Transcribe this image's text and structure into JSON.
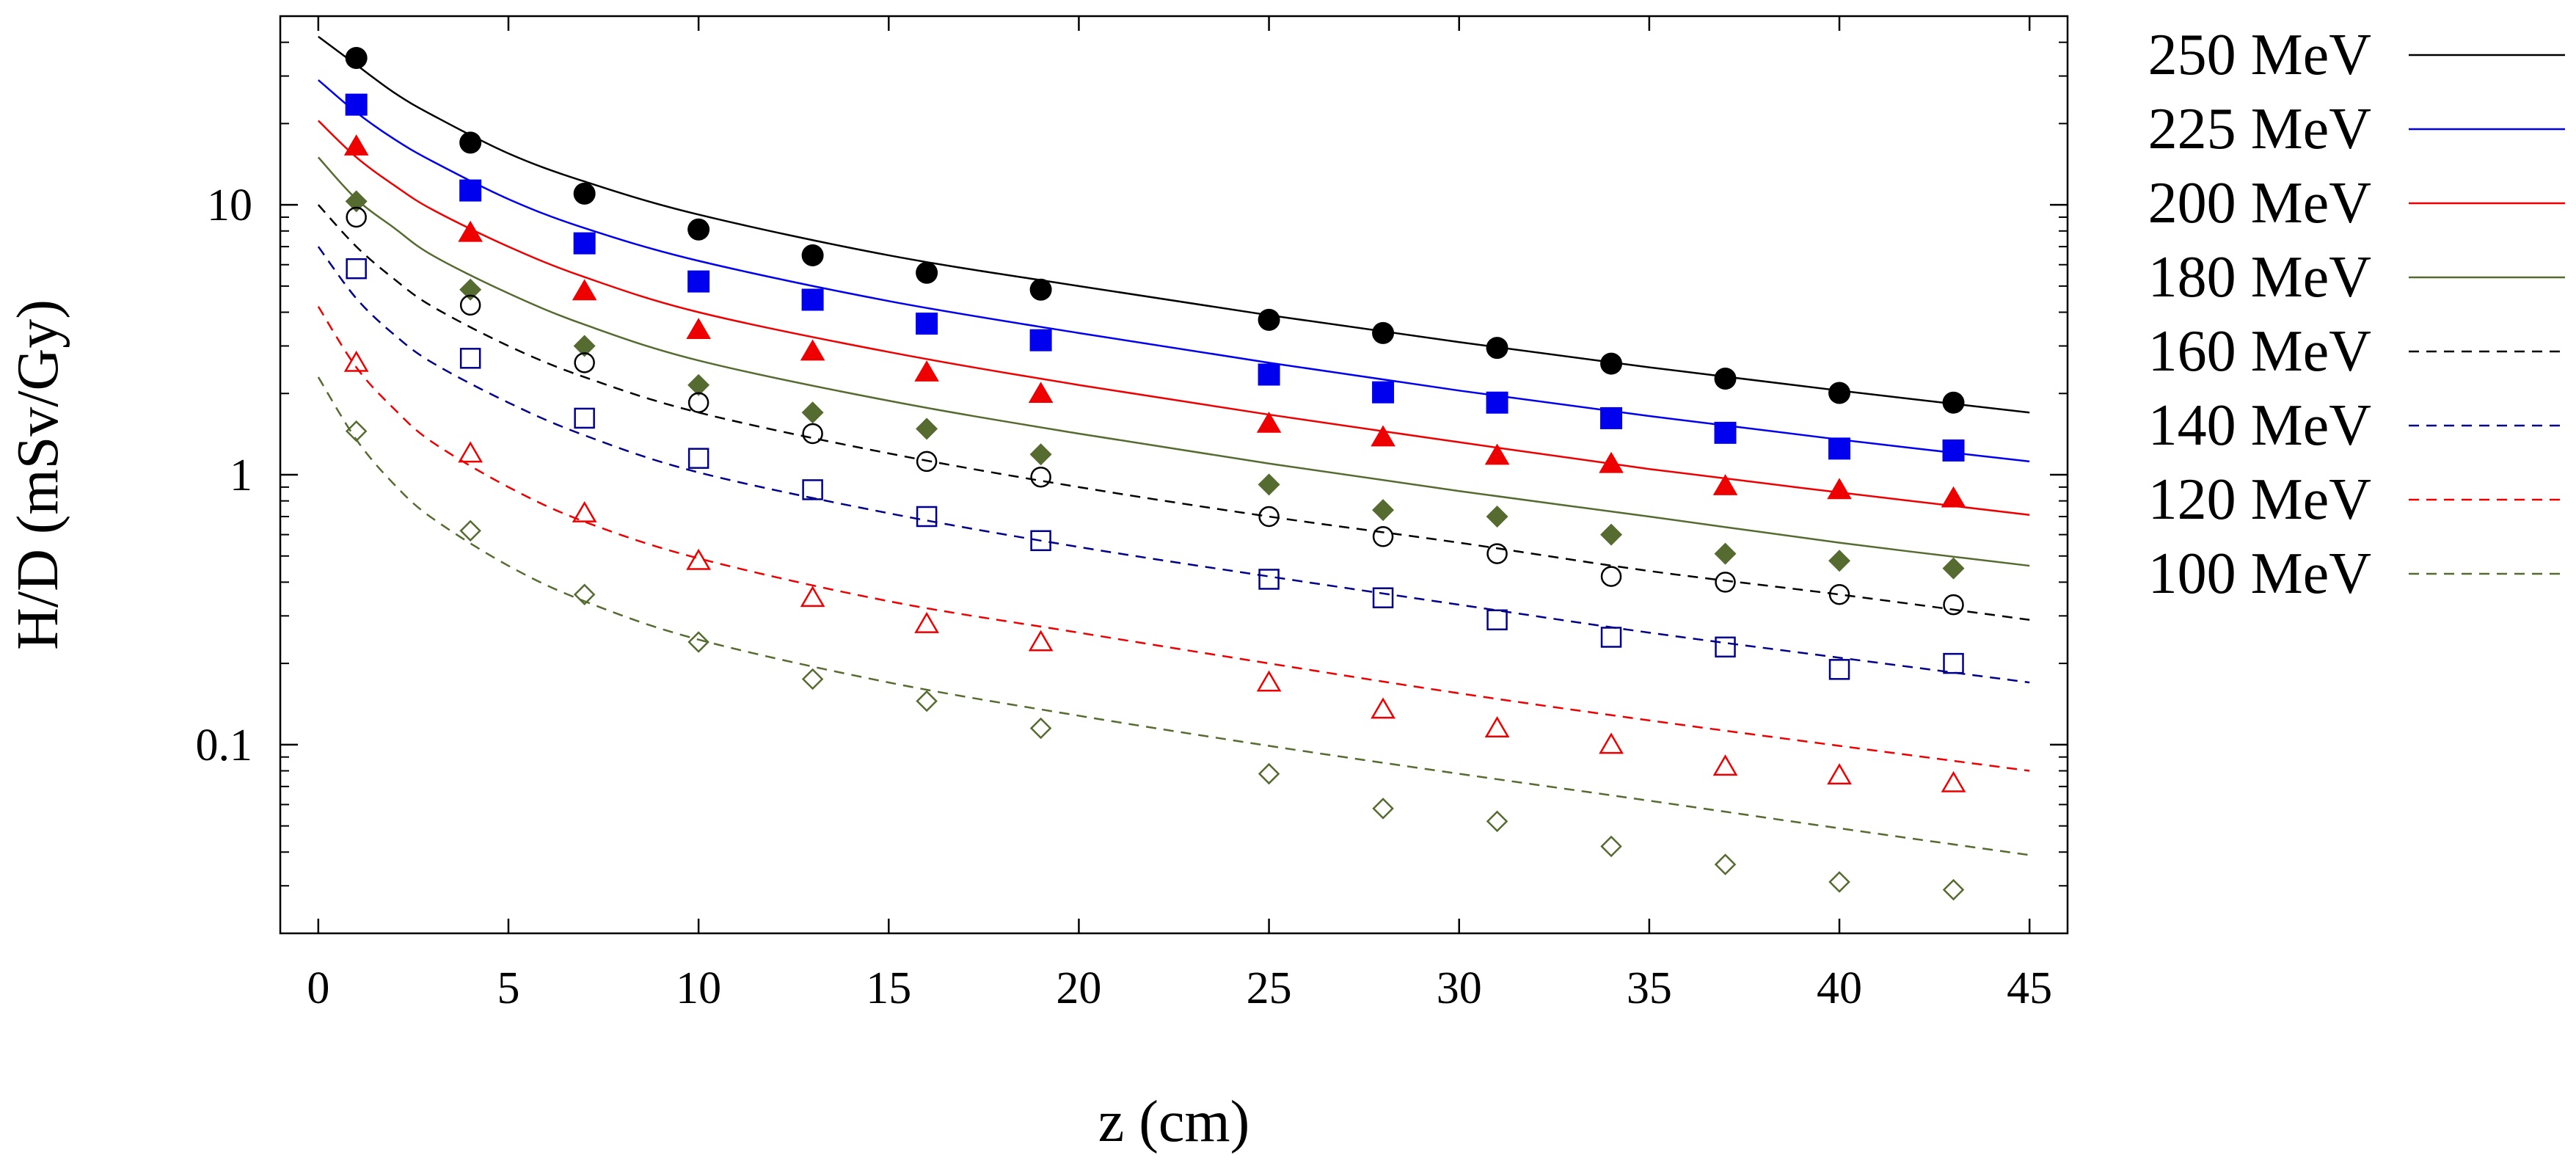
{
  "chart_data": {
    "type": "scatter",
    "title": "",
    "xlabel": "z (cm)",
    "ylabel": "H/D (mSv/Gy)",
    "xlim": [
      -1,
      46
    ],
    "ylim": [
      0.02,
      50
    ],
    "yscale": "log",
    "xticks": [
      0,
      5,
      10,
      15,
      20,
      25,
      30,
      35,
      40,
      45
    ],
    "xtick_labels": [
      "0",
      "5",
      "10",
      "15",
      "20",
      "25",
      "30",
      "35",
      "40",
      "45"
    ],
    "yticks": [
      0.1,
      1,
      10
    ],
    "ytick_labels": [
      "0.1",
      "1",
      "10"
    ],
    "legend_position": "right",
    "x": [
      1,
      4,
      7,
      10,
      13,
      16,
      19,
      25,
      28,
      31,
      34,
      37,
      40,
      43
    ],
    "series": [
      {
        "name": "250 MeV",
        "color": "#000000",
        "line_style": "solid",
        "marker": "circle",
        "filled": true,
        "values": [
          35,
          17,
          11,
          8.1,
          6.5,
          5.6,
          4.85,
          3.75,
          3.35,
          2.95,
          2.58,
          2.27,
          2.01,
          1.85
        ],
        "fit": [
          [
            0,
            42
          ],
          [
            1,
            33
          ],
          [
            2,
            26
          ],
          [
            3,
            21.5
          ],
          [
            5,
            15.5
          ],
          [
            7,
            12.2
          ],
          [
            10,
            9.2
          ],
          [
            15,
            6.5
          ],
          [
            20,
            5.0
          ],
          [
            25,
            3.9
          ],
          [
            30,
            3.1
          ],
          [
            35,
            2.5
          ],
          [
            40,
            2.05
          ],
          [
            45,
            1.7
          ]
        ]
      },
      {
        "name": "225 MeV",
        "color": "#0000ee",
        "line_style": "solid",
        "marker": "square",
        "filled": true,
        "values": [
          23.5,
          11.3,
          7.2,
          5.2,
          4.45,
          3.63,
          3.15,
          2.35,
          2.02,
          1.85,
          1.62,
          1.43,
          1.25,
          1.23
        ],
        "fit": [
          [
            0,
            29
          ],
          [
            1,
            22
          ],
          [
            2,
            17.5
          ],
          [
            3,
            14.5
          ],
          [
            5,
            10.5
          ],
          [
            7,
            8.2
          ],
          [
            10,
            6.2
          ],
          [
            15,
            4.4
          ],
          [
            20,
            3.35
          ],
          [
            25,
            2.6
          ],
          [
            30,
            2.05
          ],
          [
            35,
            1.65
          ],
          [
            40,
            1.35
          ],
          [
            45,
            1.12
          ]
        ]
      },
      {
        "name": "200 MeV",
        "color": "#ee0000",
        "line_style": "solid",
        "marker": "triangle",
        "filled": true,
        "values": [
          16.5,
          7.9,
          4.8,
          3.45,
          2.87,
          2.4,
          2.0,
          1.55,
          1.38,
          1.18,
          1.1,
          0.91,
          0.88,
          0.82
        ],
        "fit": [
          [
            0,
            20.5
          ],
          [
            1,
            15
          ],
          [
            2,
            11.8
          ],
          [
            3,
            9.6
          ],
          [
            5,
            7.0
          ],
          [
            7,
            5.4
          ],
          [
            10,
            4.0
          ],
          [
            15,
            2.85
          ],
          [
            20,
            2.15
          ],
          [
            25,
            1.67
          ],
          [
            30,
            1.32
          ],
          [
            35,
            1.05
          ],
          [
            40,
            0.86
          ],
          [
            45,
            0.71
          ]
        ]
      },
      {
        "name": "180 MeV",
        "color": "#556b2f",
        "line_style": "solid",
        "marker": "diamond",
        "filled": true,
        "values": [
          10.3,
          4.85,
          3.0,
          2.15,
          1.7,
          1.48,
          1.19,
          0.92,
          0.74,
          0.7,
          0.6,
          0.51,
          0.48,
          0.45
        ],
        "fit": [
          [
            0,
            15
          ],
          [
            1,
            10.5
          ],
          [
            2,
            8.2
          ],
          [
            3,
            6.5
          ],
          [
            5,
            4.7
          ],
          [
            7,
            3.6
          ],
          [
            10,
            2.65
          ],
          [
            15,
            1.88
          ],
          [
            20,
            1.42
          ],
          [
            25,
            1.1
          ],
          [
            30,
            0.87
          ],
          [
            35,
            0.7
          ],
          [
            40,
            0.56
          ],
          [
            45,
            0.46
          ]
        ]
      },
      {
        "name": "160 MeV",
        "color": "#000000",
        "line_style": "dashed",
        "marker": "circle",
        "filled": false,
        "values": [
          9.0,
          4.25,
          2.6,
          1.85,
          1.42,
          1.12,
          0.98,
          0.7,
          0.59,
          0.51,
          0.42,
          0.4,
          0.36,
          0.33
        ],
        "fit": [
          [
            0,
            10
          ],
          [
            1,
            7.0
          ],
          [
            2,
            5.3
          ],
          [
            3,
            4.2
          ],
          [
            5,
            3.0
          ],
          [
            7,
            2.3
          ],
          [
            10,
            1.7
          ],
          [
            15,
            1.2
          ],
          [
            20,
            0.9
          ],
          [
            25,
            0.7
          ],
          [
            30,
            0.56
          ],
          [
            35,
            0.44
          ],
          [
            40,
            0.36
          ],
          [
            45,
            0.29
          ]
        ]
      },
      {
        "name": "140 MeV",
        "color": "#00008b",
        "line_style": "dashed",
        "marker": "square",
        "filled": false,
        "values": [
          5.8,
          2.7,
          1.62,
          1.15,
          0.88,
          0.7,
          0.57,
          0.41,
          0.35,
          0.29,
          0.25,
          0.23,
          0.19,
          0.2
        ],
        "fit": [
          [
            0,
            7.0
          ],
          [
            1,
            4.5
          ],
          [
            2,
            3.3
          ],
          [
            3,
            2.6
          ],
          [
            5,
            1.85
          ],
          [
            7,
            1.4
          ],
          [
            10,
            1.02
          ],
          [
            15,
            0.72
          ],
          [
            20,
            0.54
          ],
          [
            25,
            0.42
          ],
          [
            30,
            0.33
          ],
          [
            35,
            0.26
          ],
          [
            40,
            0.21
          ],
          [
            45,
            0.17
          ]
        ]
      },
      {
        "name": "120 MeV",
        "color": "#ee0000",
        "line_style": "dashed",
        "marker": "triangle",
        "filled": false,
        "values": [
          2.6,
          1.2,
          0.72,
          0.48,
          0.35,
          0.28,
          0.24,
          0.17,
          0.135,
          0.115,
          0.1,
          0.083,
          0.077,
          0.072
        ],
        "fit": [
          [
            0,
            4.2
          ],
          [
            1,
            2.5
          ],
          [
            2,
            1.75
          ],
          [
            3,
            1.32
          ],
          [
            5,
            0.9
          ],
          [
            7,
            0.67
          ],
          [
            10,
            0.49
          ],
          [
            15,
            0.34
          ],
          [
            20,
            0.26
          ],
          [
            25,
            0.2
          ],
          [
            30,
            0.155
          ],
          [
            35,
            0.123
          ],
          [
            40,
            0.099
          ],
          [
            45,
            0.08
          ]
        ]
      },
      {
        "name": "100 MeV",
        "color": "#556b2f",
        "line_style": "dashed",
        "marker": "diamond",
        "filled": false,
        "values": [
          1.45,
          0.62,
          0.36,
          0.24,
          0.175,
          0.145,
          0.115,
          0.078,
          0.058,
          0.052,
          0.042,
          0.036,
          0.031,
          0.029
        ],
        "fit": [
          [
            0,
            2.3
          ],
          [
            1,
            1.35
          ],
          [
            2,
            0.92
          ],
          [
            3,
            0.69
          ],
          [
            5,
            0.46
          ],
          [
            7,
            0.34
          ],
          [
            10,
            0.245
          ],
          [
            15,
            0.17
          ],
          [
            20,
            0.128
          ],
          [
            25,
            0.099
          ],
          [
            30,
            0.078
          ],
          [
            35,
            0.062
          ],
          [
            40,
            0.049
          ],
          [
            45,
            0.039
          ]
        ]
      }
    ]
  }
}
